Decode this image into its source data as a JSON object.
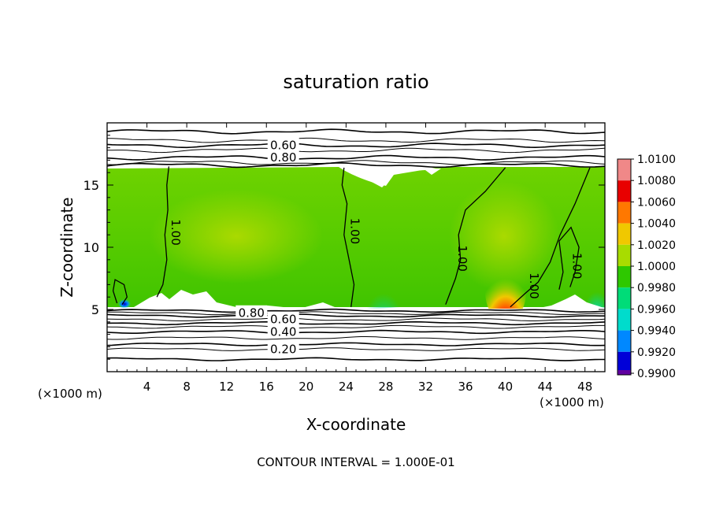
{
  "chart_data": {
    "type": "heatmap",
    "title": "saturation ratio",
    "xlabel": "X-coordinate",
    "ylabel": "Z-coordinate",
    "x_unit": "(×1000 m)",
    "footer": "CONTOUR INTERVAL = 1.000E-01",
    "xlim": [
      0,
      50
    ],
    "ylim": [
      0,
      20
    ],
    "x_ticks": [
      4,
      8,
      12,
      16,
      20,
      24,
      28,
      32,
      36,
      40,
      44,
      48
    ],
    "y_ticks": [
      5,
      10,
      15
    ],
    "colorbar": {
      "levels": [
        "1.0100",
        "1.0080",
        "1.0060",
        "1.0040",
        "1.0020",
        "1.0000",
        "0.9980",
        "0.9960",
        "0.9940",
        "0.9920",
        "0.9900"
      ],
      "colors": [
        "#f08888",
        "#e80000",
        "#ff7800",
        "#f0c800",
        "#a8dc00",
        "#2ec800",
        "#00dc78",
        "#00dccc",
        "#0088ff",
        "#0000d8",
        "#6000a0"
      ]
    },
    "contour_labels": [
      {
        "text": "0.60",
        "x": 17.7,
        "y": 18.2
      },
      {
        "text": "0.80",
        "x": 17.7,
        "y": 17.2
      },
      {
        "text": "1.00",
        "x": 6.5,
        "y": 11.2
      },
      {
        "text": "1.00",
        "x": 24.5,
        "y": 11.3
      },
      {
        "text": "1.00",
        "x": 35.3,
        "y": 9.1
      },
      {
        "text": "1.00",
        "x": 42.5,
        "y": 6.9
      },
      {
        "text": "1.00",
        "x": 46.8,
        "y": 8.5
      },
      {
        "text": "0.80",
        "x": 14.5,
        "y": 4.7
      },
      {
        "text": "0.60",
        "x": 17.7,
        "y": 4.2
      },
      {
        "text": "0.40",
        "x": 17.7,
        "y": 3.2
      },
      {
        "text": "0.20",
        "x": 17.7,
        "y": 1.8
      }
    ],
    "field": {
      "moist_layer": [
        5,
        16.5
      ],
      "base_value": "1.0000",
      "local_maxima": [
        {
          "x": 39.7,
          "z": 5.5,
          "value": "1.0080"
        }
      ],
      "subsaturated_below": 5,
      "subsaturated_above": 16.5
    }
  }
}
